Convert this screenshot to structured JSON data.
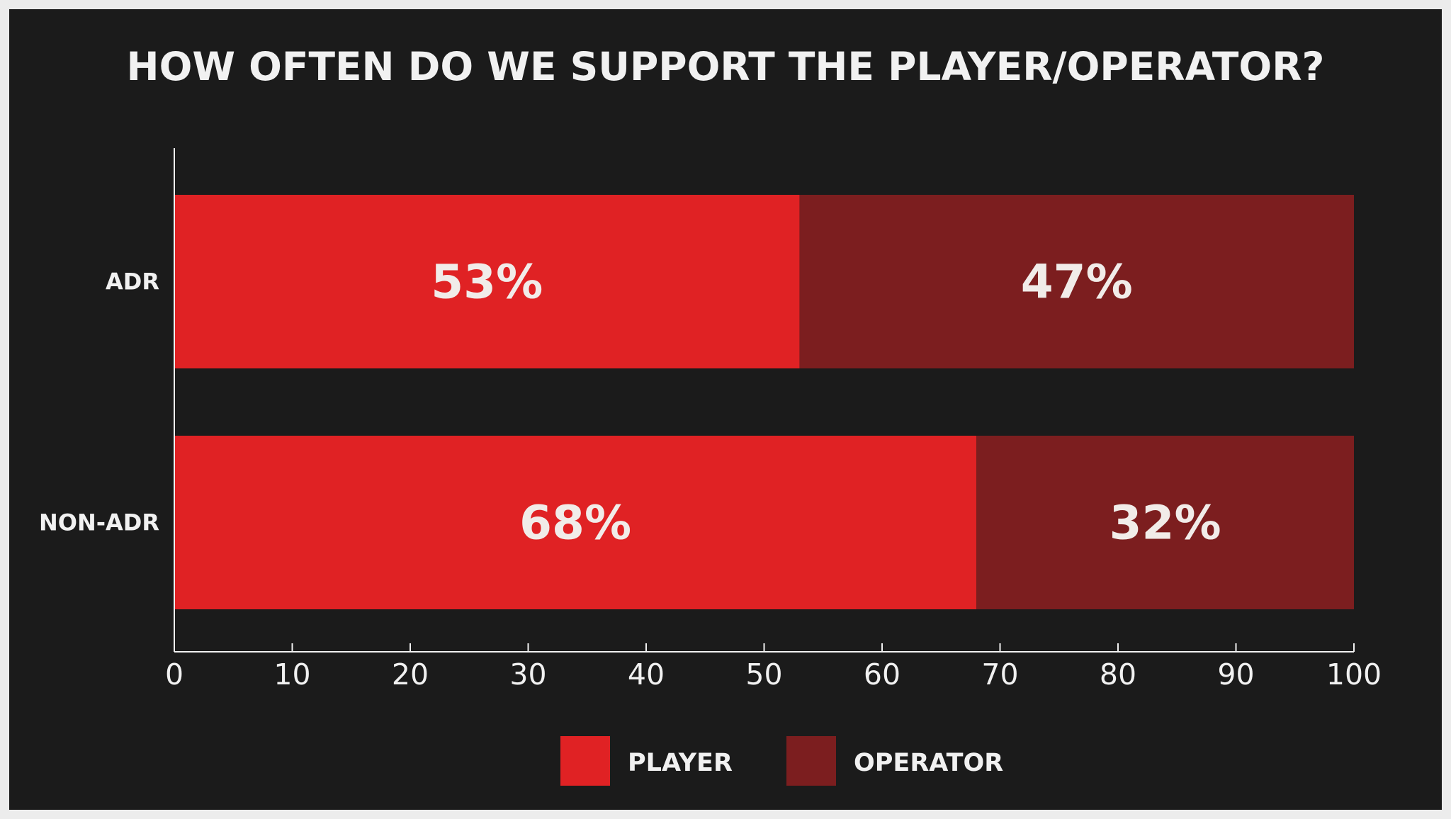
{
  "chart_data": {
    "type": "bar",
    "orientation": "horizontal",
    "stacked": true,
    "title": "HOW OFTEN DO WE SUPPORT THE PLAYER/OPERATOR?",
    "categories": [
      "ADR",
      "NON-ADR"
    ],
    "series": [
      {
        "name": "PLAYER",
        "values": [
          53,
          68
        ],
        "labels": [
          "53%",
          "68%"
        ],
        "color": "#e02224"
      },
      {
        "name": "OPERATOR",
        "values": [
          47,
          32
        ],
        "labels": [
          "47%",
          "32%"
        ],
        "color": "#7c1e1f"
      }
    ],
    "xlim": [
      0,
      100
    ],
    "xticks": [
      0,
      10,
      20,
      30,
      40,
      50,
      60,
      70,
      80,
      90,
      100
    ],
    "grid": false,
    "legend_position": "bottom"
  },
  "colors": {
    "background": "#1b1b1b",
    "outer_border": "#ececec",
    "text": "#f1f1f1",
    "axis": "#f1f1f1"
  }
}
